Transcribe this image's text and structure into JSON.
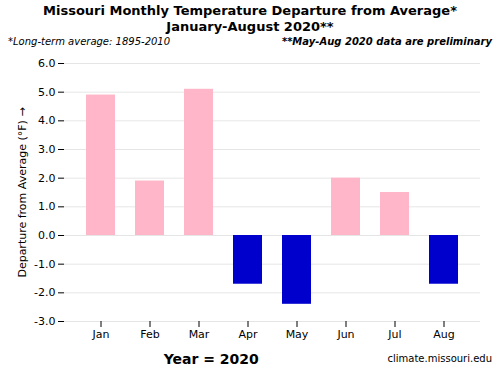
{
  "chart_data": {
    "type": "bar",
    "title": "Missouri Monthly Temperature Departure from Average*",
    "subtitle": "January-August 2020**",
    "annotations": [
      "*Long-term average: 1895-2010",
      "**May-Aug 2020 data are preliminary",
      "climate.missouri.edu"
    ],
    "xlabel": "Year = 2020",
    "ylabel": "Departure from Average (°F)",
    "categories": [
      "Jan",
      "Feb",
      "Mar",
      "Apr",
      "May",
      "Jun",
      "Jul",
      "Aug"
    ],
    "values": [
      4.9,
      1.9,
      5.1,
      -1.7,
      -2.4,
      2.0,
      1.5,
      -1.7
    ],
    "colors": [
      "#FFB6C8",
      "#FFB6C8",
      "#FFB6C8",
      "#0000CC",
      "#0000CC",
      "#FFB6C8",
      "#FFB6C8",
      "#0000CC"
    ],
    "ylim": [
      -3.0,
      6.0
    ],
    "yticks": [
      {
        "value": -3.0,
        "label": "-3.0"
      },
      {
        "value": -2.0,
        "label": "-2.0"
      },
      {
        "value": -1.0,
        "label": "-1.0"
      },
      {
        "value": 0.0,
        "label": "0.0"
      },
      {
        "value": 1.0,
        "label": "1.0"
      },
      {
        "value": 2.0,
        "label": "2.0"
      },
      {
        "value": 3.0,
        "label": "3.0"
      },
      {
        "value": 4.0,
        "label": "4.0"
      },
      {
        "value": 5.0,
        "label": "5.0"
      },
      {
        "value": 6.0,
        "label": "6.0"
      }
    ],
    "grid": true
  }
}
